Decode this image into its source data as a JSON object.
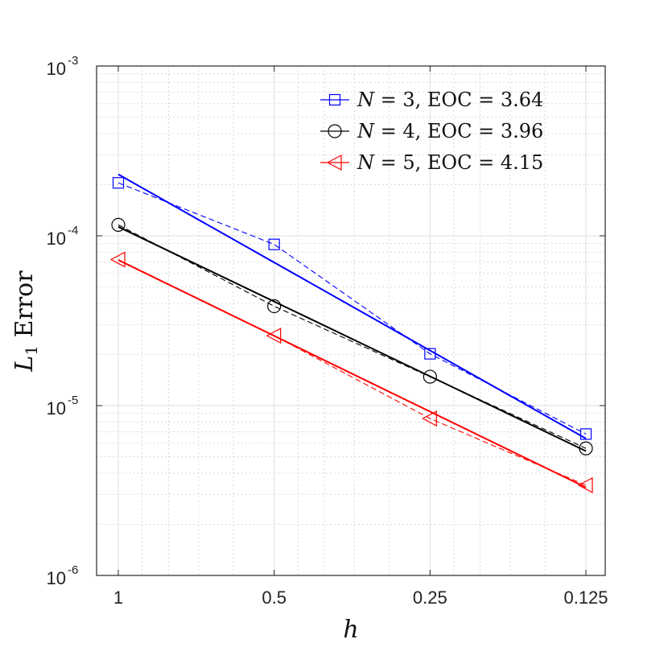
{
  "chart_data": {
    "type": "line",
    "title": "",
    "xlabel": "h",
    "ylabel": "L1 Error",
    "ylabel_main": "L",
    "ylabel_sub": "1",
    "ylabel_rest": " Error",
    "x_scale": "log",
    "x_reversed": true,
    "y_scale": "log",
    "xlim": [
      1.0,
      0.125
    ],
    "ylim": [
      1e-06,
      0.001
    ],
    "grid": true,
    "minor_grid": true,
    "legend_position": "top-right",
    "x_ticks": [
      {
        "value": 1,
        "label": "1"
      },
      {
        "value": 0.5,
        "label": "0.5"
      },
      {
        "value": 0.25,
        "label": "0.25"
      },
      {
        "value": 0.125,
        "label": "0.125"
      }
    ],
    "y_ticks": [
      {
        "value": 1e-06,
        "base": "10",
        "exp": "-6"
      },
      {
        "value": 1e-05,
        "base": "10",
        "exp": "-5"
      },
      {
        "value": 0.0001,
        "base": "10",
        "exp": "-4"
      },
      {
        "value": 0.001,
        "base": "10",
        "exp": "-3"
      }
    ],
    "series": [
      {
        "name": "N = 3, EOC = 3.64",
        "legend_n": "N",
        "legend_eq": " = 3, EOC = 3.64",
        "color": "#0000ff",
        "marker": "square",
        "x": [
          1,
          0.5,
          0.25,
          0.125
        ],
        "y": [
          0.000205,
          8.9e-05,
          2.02e-05,
          6.8e-06
        ],
        "fit_y": [
          0.00023,
          6.4e-06
        ]
      },
      {
        "name": "N = 4, EOC = 3.96",
        "legend_n": "N",
        "legend_eq": " = 4, EOC = 3.96",
        "color": "#000000",
        "marker": "circle",
        "x": [
          1,
          0.5,
          0.25,
          0.125
        ],
        "y": [
          0.000116,
          3.85e-05,
          1.48e-05,
          5.6e-06
        ],
        "fit_y": [
          0.000113,
          5.4e-06
        ]
      },
      {
        "name": "N = 5, EOC = 4.15",
        "legend_n": "N",
        "legend_eq": " = 5, EOC = 4.15",
        "color": "#ff0000",
        "marker": "triangle-left",
        "x": [
          1,
          0.5,
          0.25,
          0.125
        ],
        "y": [
          7.25e-05,
          2.58e-05,
          8.4e-06,
          3.4e-06
        ],
        "fit_y": [
          7.2e-05,
          3.3e-06
        ]
      }
    ]
  }
}
